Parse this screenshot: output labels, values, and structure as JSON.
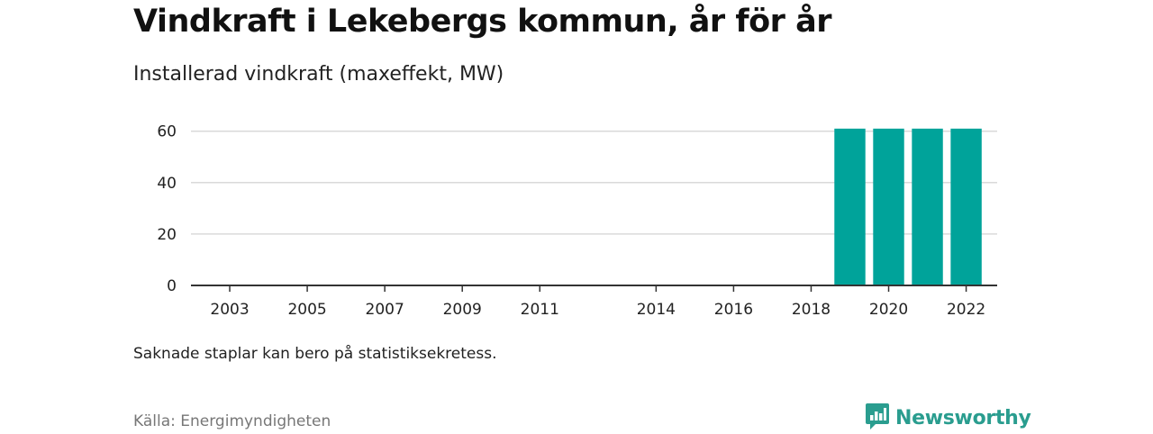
{
  "header": {
    "title": "Vindkraft i Lekebergs kommun, år för år",
    "subtitle": "Installerad vindkraft (maxeffekt, MW)"
  },
  "footer": {
    "note": "Saknade staplar kan bero på statistiksekretess.",
    "source": "Källa: Energimyndigheten",
    "brand": "Newsworthy",
    "brand_icon": "bar-chart-logo-icon"
  },
  "colors": {
    "bar": "#00a39a",
    "grid": "#d9d9d9",
    "axis": "#333333",
    "brand": "#2a9d8f"
  },
  "chart_data": {
    "type": "bar",
    "title": "Vindkraft i Lekebergs kommun, år för år",
    "subtitle": "Installerad vindkraft (maxeffekt, MW)",
    "xlabel": "",
    "ylabel": "",
    "x": [
      2002,
      2022.8
    ],
    "categories": [
      2003,
      2004,
      2005,
      2006,
      2007,
      2008,
      2009,
      2010,
      2011,
      2012,
      2013,
      2014,
      2015,
      2016,
      2017,
      2018,
      2019,
      2020,
      2021,
      2022
    ],
    "values": [
      0,
      0,
      0,
      0,
      0,
      0,
      0,
      0,
      0,
      null,
      null,
      0,
      0,
      0,
      0,
      0,
      61,
      61,
      61,
      61
    ],
    "xticks": [
      2003,
      2005,
      2007,
      2009,
      2011,
      2014,
      2016,
      2018,
      2020,
      2022
    ],
    "yticks": [
      0,
      20,
      40,
      60
    ],
    "ylim": [
      0,
      62
    ],
    "grid": true,
    "legend": "none"
  }
}
